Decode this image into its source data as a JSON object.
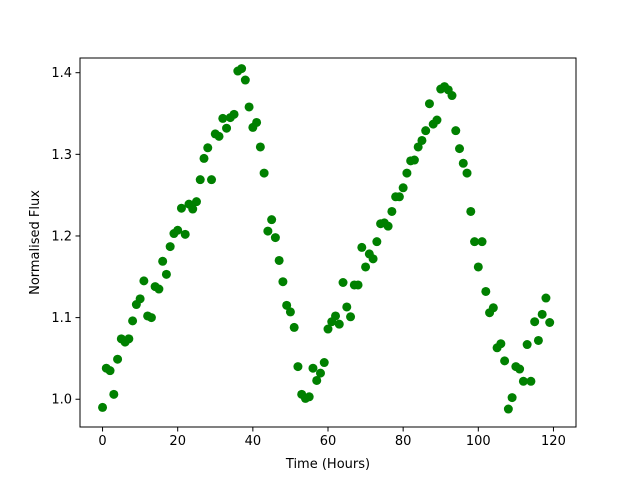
{
  "chart_data": {
    "type": "scatter",
    "title": "",
    "xlabel": "Time (Hours)",
    "ylabel": "Normalised Flux",
    "xlim": [
      -6,
      126
    ],
    "ylim": [
      0.966,
      1.418
    ],
    "xticks": [
      0,
      20,
      40,
      60,
      80,
      100,
      120
    ],
    "xtick_labels": [
      "0",
      "20",
      "40",
      "60",
      "80",
      "100",
      "120"
    ],
    "yticks": [
      1.0,
      1.1,
      1.2,
      1.3,
      1.4
    ],
    "ytick_labels": [
      "1.0",
      "1.1",
      "1.2",
      "1.3",
      "1.4"
    ],
    "grid": false,
    "legend": "none",
    "marker_color": "#008000",
    "series": [
      {
        "x": [
          0,
          1,
          2,
          3,
          4,
          5,
          6,
          7,
          8,
          9,
          10,
          11,
          12,
          13,
          14,
          15,
          16,
          17,
          18,
          19,
          20,
          21,
          22,
          23,
          24,
          25,
          26,
          27,
          28,
          29,
          30,
          31,
          32,
          33,
          34,
          35,
          36,
          37,
          38,
          39,
          40,
          41,
          42,
          43,
          44,
          45,
          46,
          47,
          48,
          49,
          50,
          51,
          52,
          53,
          54,
          55,
          56,
          57,
          58,
          59,
          60,
          61,
          62,
          63,
          64,
          65,
          66,
          67,
          68,
          69,
          70,
          71,
          72,
          73,
          74,
          75,
          76,
          77,
          78,
          79,
          80,
          81,
          82,
          83,
          84,
          85,
          86,
          87,
          88,
          89,
          90,
          91,
          92,
          93,
          94,
          95,
          96,
          97,
          98,
          99,
          100,
          101,
          102,
          103,
          104,
          105,
          106,
          107,
          108,
          109,
          110,
          111,
          112,
          113,
          114,
          115,
          116,
          117,
          118,
          119
        ],
        "y": [
          0.99,
          1.038,
          1.035,
          1.006,
          1.049,
          1.074,
          1.07,
          1.074,
          1.096,
          1.116,
          1.123,
          1.145,
          1.102,
          1.1,
          1.138,
          1.135,
          1.169,
          1.153,
          1.187,
          1.203,
          1.207,
          1.234,
          1.202,
          1.239,
          1.233,
          1.242,
          1.269,
          1.295,
          1.308,
          1.269,
          1.325,
          1.322,
          1.344,
          1.332,
          1.345,
          1.349,
          1.402,
          1.405,
          1.391,
          1.358,
          1.333,
          1.339,
          1.309,
          1.277,
          1.206,
          1.22,
          1.198,
          1.17,
          1.144,
          1.115,
          1.107,
          1.088,
          1.04,
          1.006,
          1.001,
          1.003,
          1.038,
          1.023,
          1.032,
          1.045,
          1.086,
          1.095,
          1.102,
          1.092,
          1.143,
          1.113,
          1.101,
          1.14,
          1.14,
          1.186,
          1.162,
          1.178,
          1.172,
          1.193,
          1.215,
          1.216,
          1.212,
          1.23,
          1.248,
          1.248,
          1.259,
          1.277,
          1.292,
          1.293,
          1.309,
          1.317,
          1.329,
          1.362,
          1.337,
          1.342,
          1.38,
          1.383,
          1.379,
          1.372,
          1.329,
          1.307,
          1.289,
          1.277,
          1.23,
          1.193,
          1.162,
          1.193,
          1.132,
          1.106,
          1.112,
          1.063,
          1.068,
          1.047,
          0.988,
          1.002,
          1.04,
          1.037,
          1.022,
          1.067,
          1.022,
          1.095,
          1.072,
          1.104,
          1.124,
          1.094
        ]
      }
    ]
  }
}
